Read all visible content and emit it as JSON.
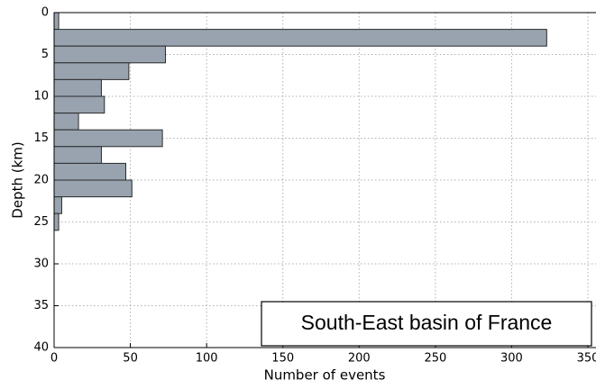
{
  "chart_data": {
    "type": "histogram",
    "orientation": "horizontal",
    "xlabel": "Number of events",
    "ylabel": "Depth (km)",
    "bins": [
      0,
      2,
      4,
      6,
      8,
      10,
      12,
      14,
      16,
      18,
      20,
      22,
      24,
      26,
      28,
      30,
      32,
      34,
      36,
      38,
      40
    ],
    "values": [
      3,
      323,
      73,
      49,
      31,
      33,
      16,
      71,
      31,
      47,
      51,
      5,
      3,
      0,
      0,
      0,
      0,
      0,
      0,
      0
    ],
    "color": "#98a3af",
    "xlim": [
      0,
      350
    ],
    "xticks": [
      0,
      50,
      100,
      150,
      200,
      250,
      300,
      350
    ],
    "ylim": [
      0,
      40
    ],
    "y_inverted": true,
    "yticks": [
      0,
      5,
      10,
      15,
      20,
      25,
      30,
      35,
      40
    ],
    "grid": true,
    "annotation": "South-East basin of France"
  }
}
